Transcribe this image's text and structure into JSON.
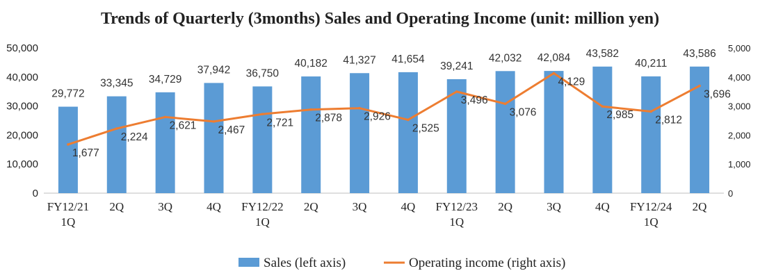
{
  "chart_data": {
    "type": "bar",
    "title": "Trends of Quarterly (3months) Sales and Operating Income (unit: million yen)",
    "categories": [
      [
        "FY12/21",
        "1Q"
      ],
      [
        "2Q"
      ],
      [
        "3Q"
      ],
      [
        "4Q"
      ],
      [
        "FY12/22",
        "1Q"
      ],
      [
        "2Q"
      ],
      [
        "3Q"
      ],
      [
        "4Q"
      ],
      [
        "FY12/23",
        "1Q"
      ],
      [
        "2Q"
      ],
      [
        "3Q"
      ],
      [
        "4Q"
      ],
      [
        "FY12/24",
        "1Q"
      ],
      [
        "2Q"
      ]
    ],
    "left_axis": {
      "ylim": [
        0,
        50000
      ],
      "ticks": [
        0,
        10000,
        20000,
        30000,
        40000,
        50000
      ],
      "tick_labels": [
        "0",
        "10,000",
        "20,000",
        "30,000",
        "40,000",
        "50,000"
      ]
    },
    "right_axis": {
      "ylim": [
        0,
        5000
      ],
      "ticks": [
        0,
        1000,
        2000,
        3000,
        4000,
        5000
      ],
      "tick_labels": [
        "0",
        "1,000",
        "2,000",
        "3,000",
        "4,000",
        "5,000"
      ]
    },
    "series": [
      {
        "name": "Sales (left axis)",
        "type": "bar",
        "axis": "left",
        "color": "#5b9bd5",
        "values": [
          29772,
          33345,
          34729,
          37942,
          36750,
          40182,
          41327,
          41654,
          39241,
          42032,
          42084,
          43582,
          40211,
          43586
        ],
        "labels": [
          "29,772",
          "33,345",
          "34,729",
          "37,942",
          "36,750",
          "40,182",
          "41,327",
          "41,654",
          "39,241",
          "42,032",
          "42,084",
          "43,582",
          "40,211",
          "43,586"
        ]
      },
      {
        "name": "Operating income (right axis)",
        "type": "line",
        "axis": "right",
        "color": "#ed7d31",
        "values": [
          1677,
          2224,
          2621,
          2467,
          2721,
          2878,
          2926,
          2525,
          3496,
          3076,
          4129,
          2985,
          2812,
          3696
        ],
        "labels": [
          "1,677",
          "2,224",
          "2,621",
          "2,467",
          "2,721",
          "2,878",
          "2,926",
          "2,525",
          "3,496",
          "3,076",
          "4,129",
          "2,985",
          "2,812",
          "3,696"
        ]
      }
    ],
    "grid": false,
    "legend_position": "bottom-center"
  }
}
